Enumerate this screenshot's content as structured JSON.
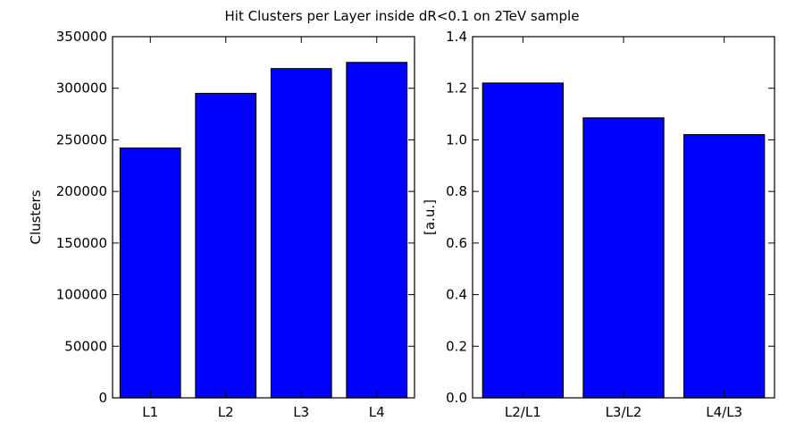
{
  "figure": {
    "title": "Hit Clusters per Layer inside dR<0.1 on 2TeV sample"
  },
  "chart_data": [
    {
      "type": "bar",
      "categories": [
        "L1",
        "L2",
        "L3",
        "L4"
      ],
      "values": [
        242000,
        295000,
        319000,
        325000
      ],
      "xlabel": "",
      "ylabel": "Clusters",
      "ylim": [
        0,
        350000
      ],
      "yticks": [
        0,
        50000,
        100000,
        150000,
        200000,
        250000,
        300000,
        350000
      ],
      "ytick_labels": [
        "0",
        "50000",
        "100000",
        "150000",
        "200000",
        "250000",
        "300000",
        "350000"
      ],
      "bar_color": "#0000ff",
      "grid": false
    },
    {
      "type": "bar",
      "categories": [
        "L2/L1",
        "L3/L2",
        "L4/L3"
      ],
      "values": [
        1.22,
        1.085,
        1.02
      ],
      "xlabel": "",
      "ylabel": "[a.u.]",
      "ylim": [
        0.0,
        1.4
      ],
      "yticks": [
        0.0,
        0.2,
        0.4,
        0.6,
        0.8,
        1.0,
        1.2,
        1.4
      ],
      "ytick_labels": [
        "0.0",
        "0.2",
        "0.4",
        "0.6",
        "0.8",
        "1.0",
        "1.2",
        "1.4"
      ],
      "bar_color": "#0000ff",
      "grid": false
    }
  ]
}
